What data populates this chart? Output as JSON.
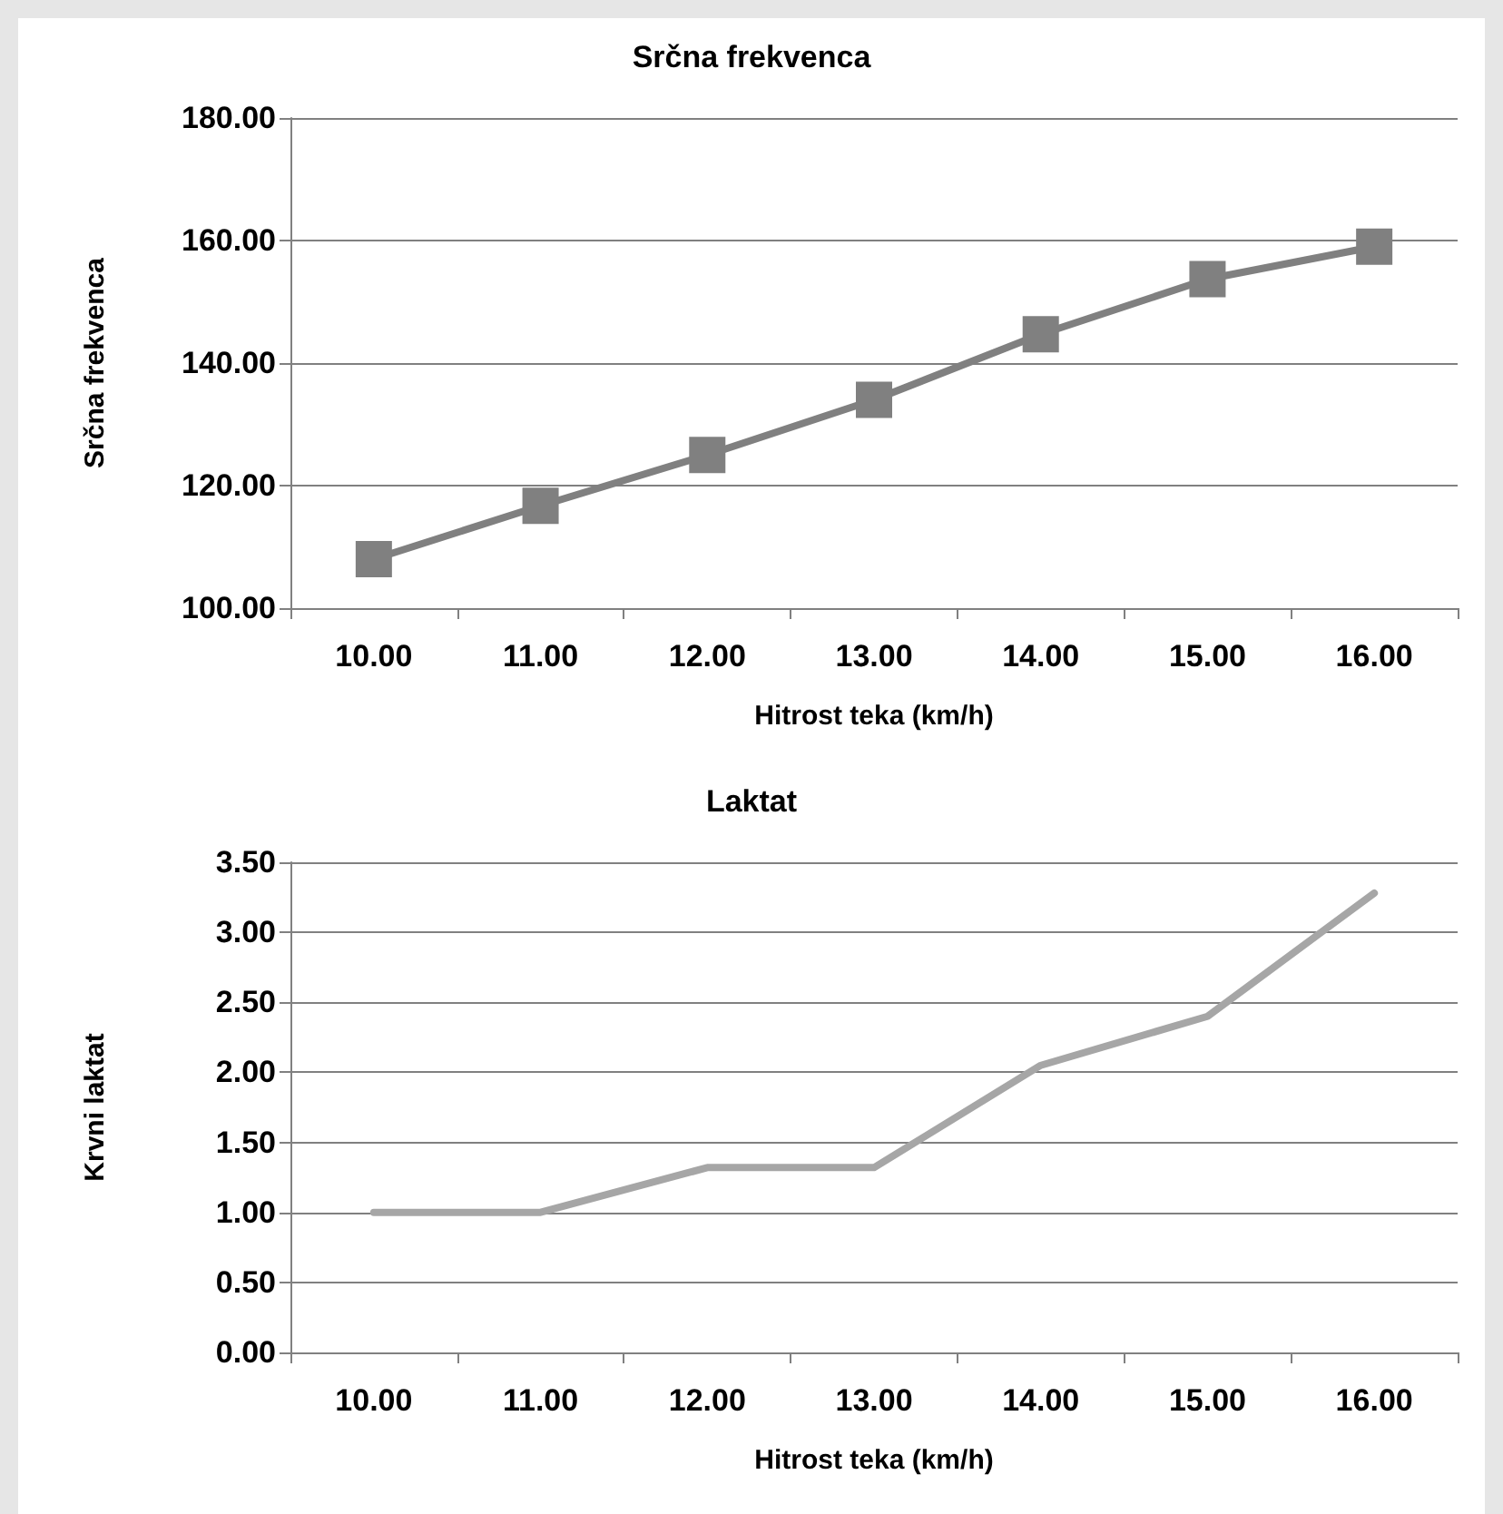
{
  "chart_data": [
    {
      "type": "line",
      "title": "Srčna frekvenca",
      "xlabel": "Hitrost teka (km/h)",
      "ylabel": "Srčna frekvenca",
      "categories": [
        "10.00",
        "11.00",
        "12.00",
        "13.00",
        "14.00",
        "15.00",
        "16.00"
      ],
      "series": [
        {
          "color": "#808080",
          "values": [
            108,
            116.7,
            125,
            134,
            144.7,
            153.7,
            159
          ]
        }
      ],
      "ylim": [
        100,
        180
      ],
      "yticks": [
        {
          "value": 100,
          "label": "100.00"
        },
        {
          "value": 120,
          "label": "120.00"
        },
        {
          "value": 140,
          "label": "140.00"
        },
        {
          "value": 160,
          "label": "160.00"
        },
        {
          "value": 180,
          "label": "180.00"
        }
      ],
      "grid": "y",
      "marker": "square"
    },
    {
      "type": "line",
      "title": "Laktat",
      "xlabel": "Hitrost teka (km/h)",
      "ylabel": "Krvni laktat",
      "categories": [
        "10.00",
        "11.00",
        "12.00",
        "13.00",
        "14.00",
        "15.00",
        "16.00"
      ],
      "series": [
        {
          "color": "#a6a6a6",
          "values": [
            1.0,
            1.0,
            1.32,
            1.32,
            2.05,
            2.4,
            3.28
          ]
        }
      ],
      "ylim": [
        0,
        3.5
      ],
      "yticks": [
        {
          "value": 0,
          "label": "0.00"
        },
        {
          "value": 0.5,
          "label": "0.50"
        },
        {
          "value": 1,
          "label": "1.00"
        },
        {
          "value": 1.5,
          "label": "1.50"
        },
        {
          "value": 2,
          "label": "2.00"
        },
        {
          "value": 2.5,
          "label": "2.50"
        },
        {
          "value": 3,
          "label": "3.00"
        },
        {
          "value": 3.5,
          "label": "3.50"
        }
      ],
      "grid": "y",
      "marker": "none"
    }
  ]
}
